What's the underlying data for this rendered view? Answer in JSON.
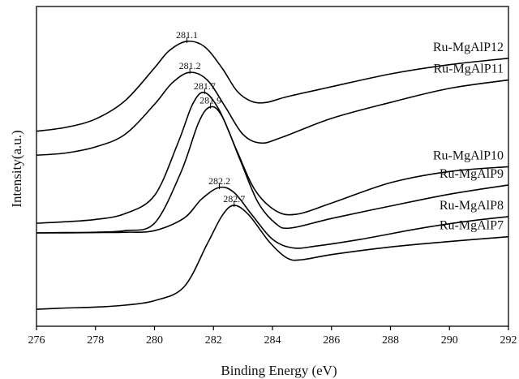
{
  "chart_data": {
    "type": "line",
    "title": "",
    "xlabel": "Binding Energy (eV)",
    "ylabel": "Intensity(a.u.)",
    "xlim": [
      276,
      292
    ],
    "x_ticks": [
      276,
      278,
      280,
      282,
      284,
      286,
      288,
      290,
      292
    ],
    "y_ticks": [],
    "grid": false,
    "legend": "labels at right end of curves",
    "line_color": "#000000",
    "series": [
      {
        "name": "Ru-MgAlP12",
        "peak_label": "281.1",
        "points": [
          [
            276,
            0.61
          ],
          [
            277,
            0.622
          ],
          [
            278,
            0.648
          ],
          [
            279,
            0.705
          ],
          [
            280,
            0.808
          ],
          [
            280.5,
            0.862
          ],
          [
            281.1,
            0.891
          ],
          [
            281.7,
            0.874
          ],
          [
            282.3,
            0.806
          ],
          [
            282.8,
            0.735
          ],
          [
            283.3,
            0.703
          ],
          [
            283.8,
            0.7
          ],
          [
            284.5,
            0.718
          ],
          [
            286,
            0.749
          ],
          [
            288,
            0.789
          ],
          [
            290,
            0.818
          ],
          [
            292,
            0.838
          ]
        ]
      },
      {
        "name": "Ru-MgAlP11",
        "peak_label": "281.2",
        "points": [
          [
            276,
            0.535
          ],
          [
            277,
            0.542
          ],
          [
            278,
            0.561
          ],
          [
            279,
            0.6
          ],
          [
            280,
            0.694
          ],
          [
            280.6,
            0.761
          ],
          [
            281.2,
            0.794
          ],
          [
            281.8,
            0.769
          ],
          [
            282.4,
            0.686
          ],
          [
            283.0,
            0.6
          ],
          [
            283.6,
            0.573
          ],
          [
            284.3,
            0.59
          ],
          [
            286,
            0.65
          ],
          [
            288,
            0.7
          ],
          [
            290,
            0.744
          ],
          [
            292,
            0.77
          ]
        ]
      },
      {
        "name": "Ru-MgAlP10",
        "peak_label": "281.7",
        "points": [
          [
            276,
            0.322
          ],
          [
            277,
            0.327
          ],
          [
            278,
            0.334
          ],
          [
            279,
            0.352
          ],
          [
            280,
            0.409
          ],
          [
            280.8,
            0.574
          ],
          [
            281.3,
            0.696
          ],
          [
            281.7,
            0.731
          ],
          [
            282.2,
            0.675
          ],
          [
            282.8,
            0.547
          ],
          [
            283.4,
            0.427
          ],
          [
            284.1,
            0.362
          ],
          [
            284.8,
            0.35
          ],
          [
            286,
            0.385
          ],
          [
            288,
            0.449
          ],
          [
            290,
            0.484
          ],
          [
            292,
            0.499
          ]
        ]
      },
      {
        "name": "Ru-MgAlP9",
        "peak_label": "281.9",
        "points": [
          [
            276,
            0.292
          ],
          [
            277,
            0.293
          ],
          [
            278,
            0.294
          ],
          [
            279,
            0.299
          ],
          [
            280,
            0.322
          ],
          [
            280.9,
            0.482
          ],
          [
            281.5,
            0.638
          ],
          [
            281.9,
            0.686
          ],
          [
            282.3,
            0.655
          ],
          [
            282.9,
            0.521
          ],
          [
            283.5,
            0.389
          ],
          [
            284.1,
            0.322
          ],
          [
            284.6,
            0.307
          ],
          [
            286,
            0.337
          ],
          [
            288,
            0.376
          ],
          [
            290,
            0.413
          ],
          [
            292,
            0.442
          ]
        ]
      },
      {
        "name": "Ru-MgAlP8",
        "peak_label": "282.2",
        "points": [
          [
            276,
            0.292
          ],
          [
            277,
            0.292
          ],
          [
            278,
            0.293
          ],
          [
            279,
            0.294
          ],
          [
            280,
            0.299
          ],
          [
            281,
            0.338
          ],
          [
            281.6,
            0.398
          ],
          [
            282.2,
            0.434
          ],
          [
            282.7,
            0.418
          ],
          [
            283.3,
            0.349
          ],
          [
            284.0,
            0.272
          ],
          [
            284.7,
            0.245
          ],
          [
            285.5,
            0.251
          ],
          [
            287,
            0.272
          ],
          [
            289,
            0.306
          ],
          [
            290.5,
            0.327
          ],
          [
            292,
            0.343
          ]
        ]
      },
      {
        "name": "Ru-MgAlP7",
        "peak_label": "282.7",
        "points": [
          [
            276,
            0.053
          ],
          [
            277,
            0.057
          ],
          [
            278,
            0.06
          ],
          [
            279,
            0.066
          ],
          [
            280,
            0.08
          ],
          [
            281,
            0.123
          ],
          [
            281.8,
            0.26
          ],
          [
            282.3,
            0.347
          ],
          [
            282.7,
            0.378
          ],
          [
            283.2,
            0.348
          ],
          [
            283.9,
            0.263
          ],
          [
            284.5,
            0.213
          ],
          [
            285,
            0.208
          ],
          [
            286,
            0.224
          ],
          [
            288,
            0.248
          ],
          [
            290,
            0.265
          ],
          [
            292,
            0.28
          ]
        ]
      }
    ]
  }
}
